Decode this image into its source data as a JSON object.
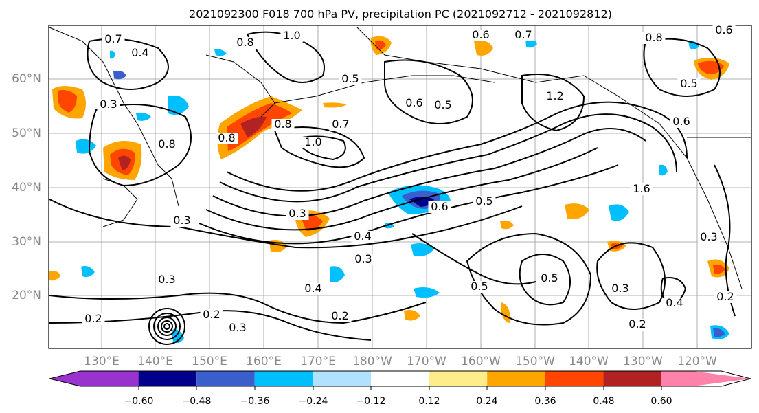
{
  "title": "2021092300 F018 700 hPa PV, precipitation PC (2021092712 - 2021092812)",
  "axes": {
    "lat_labels": [
      "60°N",
      "50°N",
      "40°N",
      "30°N",
      "20°N"
    ],
    "lon_labels": [
      "130°E",
      "140°E",
      "150°E",
      "160°E",
      "170°E",
      "180°W",
      "170°W",
      "160°W",
      "150°W",
      "140°W",
      "130°W",
      "120°W"
    ],
    "grid": true
  },
  "colorbar": {
    "colors": [
      "#9a32cd",
      "#00008b",
      "#3a5fcd",
      "#00bfff",
      "#b0e2ff",
      "#ffffff",
      "#ffec8b",
      "#ffa500",
      "#ff4500",
      "#b22222",
      "#ff82ab"
    ],
    "tick_labels": [
      "−0.60",
      "−0.48",
      "−0.36",
      "−0.24",
      "−0.12",
      "0.12",
      "0.24",
      "0.36",
      "0.48",
      "0.60"
    ],
    "extend": "both"
  },
  "contour_labels": [
    "0.7",
    "0.4",
    "1.0",
    "0.8",
    "0.6",
    "0.7",
    "0.6",
    "0.8",
    "0.5",
    "0.5",
    "0.6",
    "0.5",
    "1.2",
    "0.6",
    "0.7",
    "1.0",
    "0.8",
    "0.8",
    "0.3",
    "0.8",
    "0.5",
    "0.6",
    "1.6",
    "0.3",
    "0.3",
    "0.4",
    "0.3",
    "0.3",
    "0.4",
    "0.5",
    "0.3",
    "0.2",
    "0.3",
    "0.2",
    "0.2",
    "0.3",
    "0.4",
    "0.2",
    "0.5",
    "0.2"
  ]
}
